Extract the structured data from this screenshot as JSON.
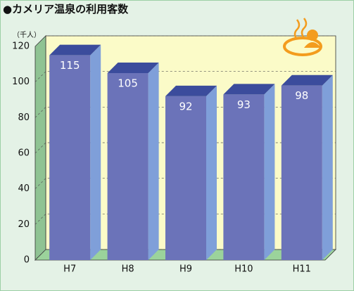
{
  "chart_data": {
    "type": "bar3d",
    "title": "●カメリア温泉の利用客数",
    "y_unit": "（千人）",
    "categories": [
      "H7",
      "H8",
      "H9",
      "H10",
      "H11"
    ],
    "values": [
      115,
      105,
      92,
      93,
      98
    ],
    "color": "#6b73b9",
    "ylim": [
      0,
      120
    ],
    "yticks": [
      0,
      20,
      40,
      60,
      80,
      100,
      120
    ],
    "grid": true
  }
}
